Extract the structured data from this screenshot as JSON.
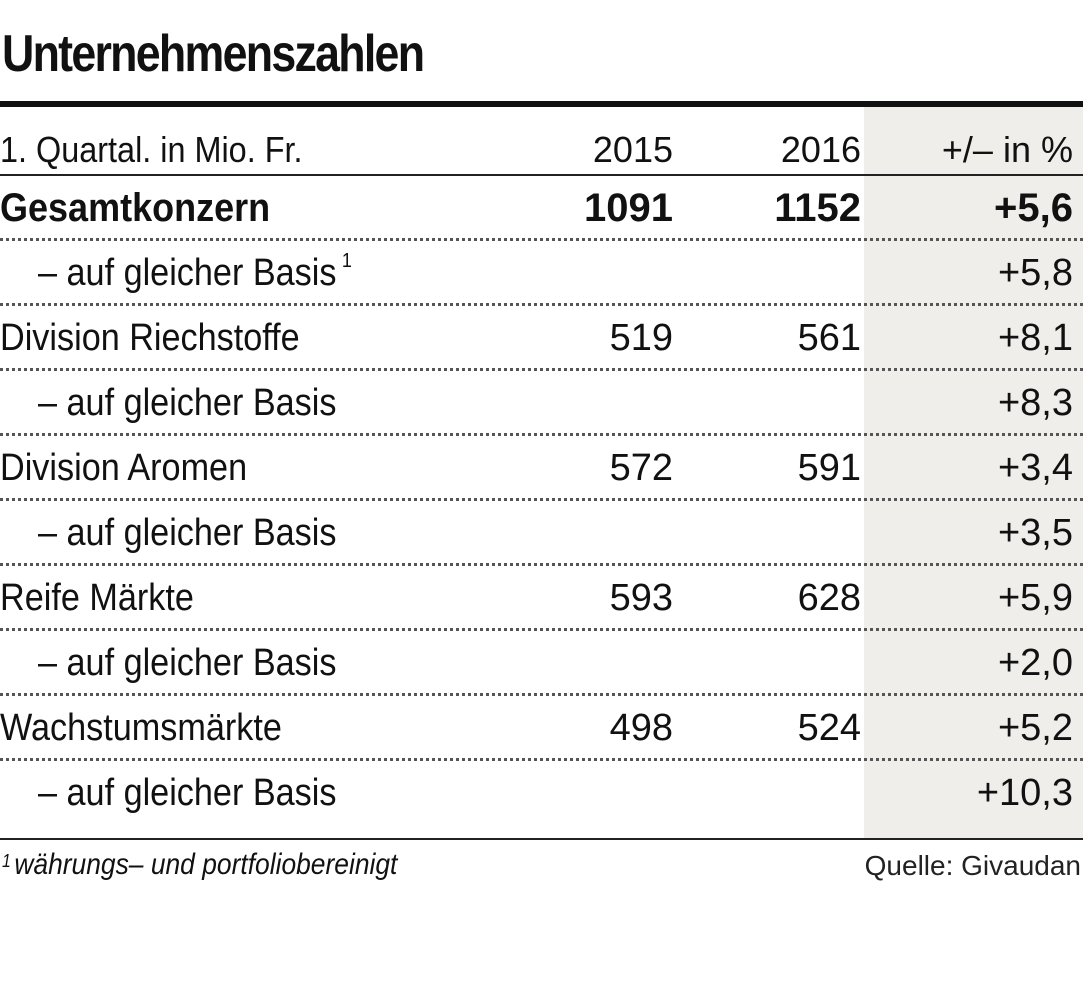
{
  "chart_data": {
    "type": "table",
    "title": "Unternehmenszahlen",
    "columns": [
      "1. Quartal. in Mio. Fr.",
      "2015",
      "2016",
      "+/– in %"
    ],
    "rows": [
      {
        "label": "Gesamtkonzern",
        "v2015": "1091",
        "v2016": "1152",
        "delta": "+5,6",
        "bold": true
      },
      {
        "label": "– auf gleicher Basis",
        "footnote": "1",
        "v2015": "",
        "v2016": "",
        "delta": "+5,8",
        "indent": true
      },
      {
        "label": "Division Riechstoffe",
        "v2015": "519",
        "v2016": "561",
        "delta": "+8,1"
      },
      {
        "label": "– auf gleicher Basis",
        "v2015": "",
        "v2016": "",
        "delta": "+8,3",
        "indent": true
      },
      {
        "label": "Division Aromen",
        "v2015": "572",
        "v2016": "591",
        "delta": "+3,4"
      },
      {
        "label": "– auf gleicher Basis",
        "v2015": "",
        "v2016": "",
        "delta": "+3,5",
        "indent": true
      },
      {
        "label": "Reife Märkte",
        "v2015": "593",
        "v2016": "628",
        "delta": "+5,9"
      },
      {
        "label": "– auf gleicher Basis",
        "v2015": "",
        "v2016": "",
        "delta": "+2,0",
        "indent": true
      },
      {
        "label": "Wachstumsmärkte",
        "v2015": "498",
        "v2016": "524",
        "delta": "+5,2"
      },
      {
        "label": "– auf gleicher Basis",
        "v2015": "",
        "v2016": "",
        "delta": "+10,3",
        "indent": true
      }
    ],
    "footnote_mark": "1",
    "footnote": "währungs– und portfoliobereinigt",
    "source": "Quelle: Givaudan"
  },
  "colors": {
    "text": "#111111",
    "highlight_column": "#efeeea",
    "dots": "#555555"
  }
}
